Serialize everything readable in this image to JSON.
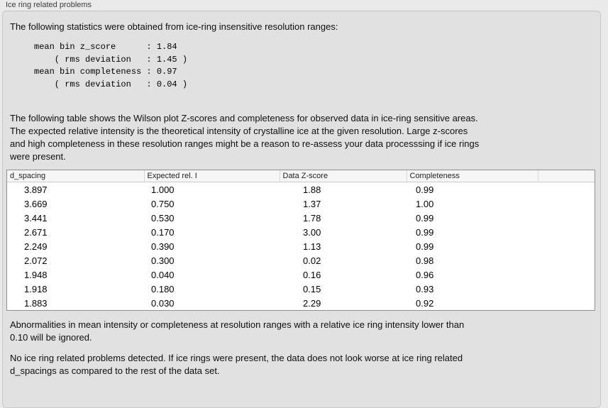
{
  "panel": {
    "title": "Ice ring related problems"
  },
  "sections": {
    "intro": "The following statistics were obtained from ice-ring insensitive resolution ranges:",
    "stats_block": "mean bin z_score      : 1.84\n    ( rms deviation   : 1.45 )\nmean bin completeness : 0.97\n    ( rms deviation   : 0.04 )",
    "stats": {
      "mean_bin_z_score": "1.84",
      "z_score_rms_deviation": "1.45",
      "mean_bin_completeness": "0.97",
      "completeness_rms_deviation": "0.04"
    },
    "table_description": "The following table shows the Wilson plot Z-scores and completeness for observed data in ice-ring sensitive areas.\nThe expected relative intensity is the theoretical intensity of crystalline ice at the given resolution. Large z-scores\nand high completeness in these resolution ranges might be a reason to re-assess your data processsing if ice rings\nwere present.",
    "ignore_note": "Abnormalities in mean intensity or completeness at resolution ranges with a relative ice ring intensity lower than\n0.10 will be ignored.",
    "conclusion": "No ice ring related problems detected. If ice rings were present, the data does not look worse at ice ring related\nd_spacings as compared to the rest of the data set."
  },
  "table": {
    "columns": [
      "d_spacing",
      "Expected rel. I",
      "Data Z-score",
      "Completeness",
      ""
    ],
    "rows": [
      [
        "3.897",
        "1.000",
        "1.88",
        "0.99"
      ],
      [
        "3.669",
        "0.750",
        "1.37",
        "1.00"
      ],
      [
        "3.441",
        "0.530",
        "1.78",
        "0.99"
      ],
      [
        "2.671",
        "0.170",
        "3.00",
        "0.99"
      ],
      [
        "2.249",
        "0.390",
        "1.13",
        "0.99"
      ],
      [
        "2.072",
        "0.300",
        "0.02",
        "0.98"
      ],
      [
        "1.948",
        "0.040",
        "0.16",
        "0.96"
      ],
      [
        "1.918",
        "0.180",
        "0.15",
        "0.93"
      ],
      [
        "1.883",
        "0.030",
        "2.29",
        "0.92"
      ]
    ]
  },
  "colors": {
    "page_background": "#eaeaea",
    "groupbox_background": "#e1e1e1",
    "groupbox_border": "#c9c9c9",
    "table_border": "#919191",
    "table_header_background": "#f6f6f6",
    "text": "#0e0e0e"
  }
}
